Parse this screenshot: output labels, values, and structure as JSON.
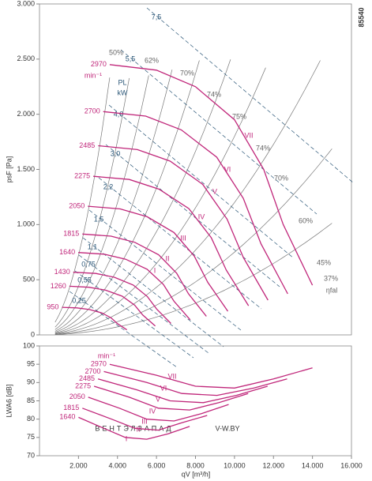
{
  "chart_data": [
    {
      "type": "line",
      "y_label": "psF [Pa]",
      "unit_label": "min⁻¹",
      "power_label": "PL",
      "power_unit": "kW",
      "xlim": [
        0,
        16000
      ],
      "ylim": [
        0,
        3000
      ],
      "yticks": [
        0,
        500,
        {
          "value": 1000,
          "label": "1.000"
        },
        {
          "value": 1500,
          "label": "1.500"
        },
        {
          "value": 2000,
          "label": "2.000"
        },
        {
          "value": 2500,
          "label": "2.500"
        },
        {
          "value": 3000,
          "label": "3.000"
        }
      ],
      "color": "#c0267a",
      "series": [
        {
          "name": "2970",
          "x": [
            3600,
            6000,
            8000,
            10000,
            11500,
            12500,
            14000
          ],
          "values": [
            2450,
            2400,
            2250,
            1950,
            1500,
            1000,
            450
          ]
        },
        {
          "name": "2700",
          "x": [
            3270,
            5450,
            7270,
            9090,
            10450,
            11360,
            12730
          ],
          "values": [
            2024,
            1983,
            1859,
            1611,
            1239,
            826,
            372
          ]
        },
        {
          "name": "2485",
          "x": [
            3010,
            5020,
            6700,
            8370,
            9620,
            10460,
            11720
          ],
          "values": [
            1715,
            1680,
            1575,
            1365,
            1050,
            700,
            315
          ]
        },
        {
          "name": "2275",
          "x": [
            2760,
            4600,
            6130,
            7660,
            8810,
            9580,
            10720
          ],
          "values": [
            1438,
            1409,
            1321,
            1145,
            881,
            587,
            264
          ]
        },
        {
          "name": "2050",
          "x": [
            2480,
            4140,
            5520,
            6900,
            7940,
            8630,
            9660
          ],
          "values": [
            1166,
            1142,
            1071,
            928,
            714,
            476,
            214
          ]
        },
        {
          "name": "1815",
          "x": [
            2200,
            3670,
            4890,
            6110,
            7030,
            7640,
            8560
          ],
          "values": [
            914,
            895,
            839,
            727,
            560,
            373,
            168
          ]
        },
        {
          "name": "1640",
          "x": [
            1990,
            3310,
            4420,
            5520,
            6350,
            6900,
            7730
          ],
          "values": [
            747,
            732,
            686,
            595,
            458,
            305,
            137
          ]
        },
        {
          "name": "1430",
          "x": [
            1730,
            2890,
            3850,
            4810,
            5530,
            6020,
            6740
          ],
          "values": [
            568,
            557,
            522,
            452,
            348,
            232,
            104
          ]
        },
        {
          "name": "1260",
          "x": [
            1530,
            2540,
            3390,
            4240,
            4880,
            5300,
            5940
          ],
          "values": [
            441,
            432,
            405,
            351,
            270,
            180,
            81
          ]
        },
        {
          "name": "950",
          "x": [
            1150,
            1920,
            2560,
            3200,
            3680,
            4000,
            4480
          ],
          "values": [
            250,
            245,
            230,
            199,
            153,
            102,
            46
          ]
        }
      ],
      "roman_labels": [
        "VII",
        "VI",
        "V",
        "IV",
        "III",
        "II",
        "I"
      ],
      "power_labels": [
        "7,5",
        "5,5",
        "4,0",
        "3,0",
        "2,2",
        "1,5",
        "1,1",
        "0,75",
        "0,55",
        "0,25"
      ],
      "efficiency_labels": [
        "50%",
        "62%",
        "70%",
        "74%",
        "75%",
        "74%",
        "70%",
        "60%",
        "45%",
        "37%"
      ],
      "efficiency_symbol": "ηfal",
      "code": "85540"
    },
    {
      "type": "line",
      "y_label": "LWA6 [dB]",
      "x_label": "qV [m³/h]",
      "unit_label": "min⁻¹",
      "xlim": [
        0,
        16000
      ],
      "ylim": [
        70,
        100
      ],
      "xticks": [
        {
          "value": 2000,
          "label": "2.000"
        },
        {
          "value": 4000,
          "label": "4.000"
        },
        {
          "value": 6000,
          "label": "6.000"
        },
        {
          "value": 8000,
          "label": "8.000"
        },
        {
          "value": 10000,
          "label": "10.000"
        },
        {
          "value": 12000,
          "label": "12.000"
        },
        {
          "value": 14000,
          "label": "14.000"
        },
        {
          "value": 16000,
          "label": "16.000"
        }
      ],
      "yticks": [
        70,
        75,
        80,
        85,
        90,
        95,
        100
      ],
      "color": "#c0267a",
      "series": [
        {
          "name": "2970",
          "x": [
            3600,
            6000,
            8000,
            10000,
            12000,
            14000
          ],
          "values": [
            95,
            92,
            89,
            88.5,
            91,
            94
          ]
        },
        {
          "name": "2700",
          "x": [
            3300,
            5500,
            7300,
            9100,
            11000,
            12700
          ],
          "values": [
            93,
            90,
            87,
            86.5,
            88.5,
            91
          ]
        },
        {
          "name": "2485",
          "x": [
            3000,
            5000,
            6700,
            8400,
            10100,
            11700
          ],
          "values": [
            91,
            88,
            85,
            84.5,
            86.5,
            89
          ]
        },
        {
          "name": "2275",
          "x": [
            2800,
            4600,
            6100,
            7700,
            9200,
            10700
          ],
          "values": [
            89,
            86,
            83,
            82.5,
            84.5,
            87
          ]
        },
        {
          "name": "2050",
          "x": [
            2500,
            4100,
            5500,
            6900,
            8300,
            9700
          ],
          "values": [
            86,
            83,
            80,
            79.5,
            81.5,
            84
          ]
        },
        {
          "name": "1815",
          "x": [
            2200,
            3700,
            4900,
            6100,
            7300,
            8600
          ],
          "values": [
            83,
            80,
            77.5,
            77,
            79,
            81
          ]
        },
        {
          "name": "1640",
          "x": [
            2000,
            3300,
            4400,
            5500,
            6600,
            7700
          ],
          "values": [
            80.5,
            77.5,
            75,
            74.5,
            76,
            78
          ]
        }
      ],
      "roman_labels": [
        "VII",
        "VI",
        "V",
        "IV",
        "III",
        "II",
        "I"
      ],
      "watermark": "ВЕНТЭЛЗАПАД",
      "watermark_site": "V-W.BY"
    }
  ]
}
